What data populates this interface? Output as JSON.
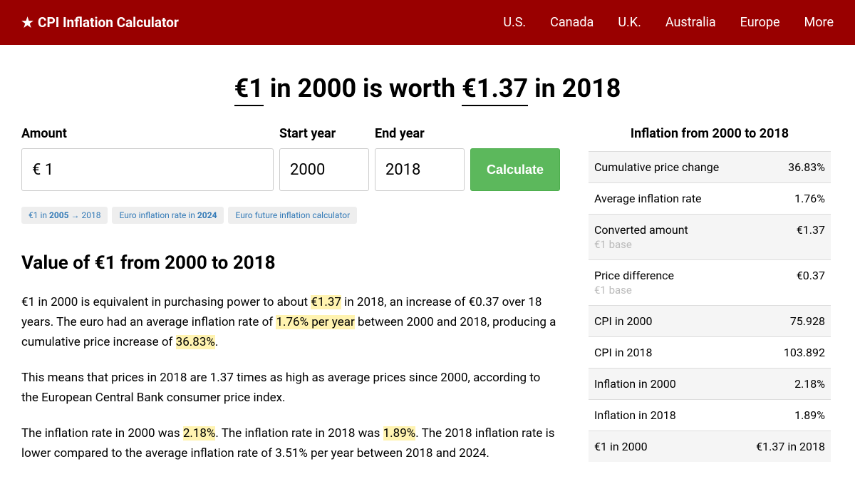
{
  "header": {
    "logo": "CPI Inflation Calculator",
    "nav": [
      "U.S.",
      "Canada",
      "U.K.",
      "Australia",
      "Europe",
      "More"
    ]
  },
  "title": {
    "amount_from": "€1",
    "mid1": " in 2000 is worth ",
    "amount_to": "€1.37",
    "mid2": " in 2018"
  },
  "form": {
    "amount_label": "Amount",
    "start_label": "Start year",
    "end_label": "End year",
    "amount_value": "€ 1",
    "start_value": "2000",
    "end_value": "2018",
    "calc_label": "Calculate"
  },
  "tags": {
    "t1_a": "€1 in ",
    "t1_b": "2005",
    "t1_c": " → 2018",
    "t2_a": "Euro inflation rate in ",
    "t2_b": "2024",
    "t3": "Euro future inflation calculator"
  },
  "section_title": "Value of €1 from 2000 to 2018",
  "p1": {
    "a": "€1 in 2000 is equivalent in purchasing power to about ",
    "h1": "€1.37",
    "b": " in 2018, an increase of €0.37 over 18 years. The euro had an average inflation rate of ",
    "h2": "1.76% per year",
    "c": " between 2000 and 2018, producing a cumulative price increase of ",
    "h3": "36.83%",
    "d": "."
  },
  "p2": "This means that prices in 2018 are 1.37 times as high as average prices since 2000, according to the European Central Bank consumer price index.",
  "p3": {
    "a": "The inflation rate in 2000 was ",
    "h1": "2.18%",
    "b": ". The inflation rate in 2018 was ",
    "h2": "1.89%",
    "c": ". The 2018 inflation rate is lower compared to the average inflation rate of 3.51% per year between 2018 and 2024."
  },
  "sidebar": {
    "title": "Inflation from 2000 to 2018",
    "rows": [
      {
        "label": "Cumulative price change",
        "value": "36.83%"
      },
      {
        "label": "Average inflation rate",
        "value": "1.76%"
      },
      {
        "label": "Converted amount",
        "sub": "€1 base",
        "value": "€1.37"
      },
      {
        "label": "Price difference",
        "sub": "€1 base",
        "value": "€0.37"
      },
      {
        "label": "CPI in 2000",
        "value": "75.928"
      },
      {
        "label": "CPI in 2018",
        "value": "103.892"
      },
      {
        "label": "Inflation in 2000",
        "value": "2.18%"
      },
      {
        "label": "Inflation in 2018",
        "value": "1.89%"
      },
      {
        "label": "€1 in 2000",
        "value": "€1.37 in 2018"
      }
    ]
  },
  "colors": {
    "header_bg": "#990000",
    "button_bg": "#5cb85c",
    "highlight_bg": "#fff3b0",
    "tag_bg": "#eee",
    "link_color": "#337ab7"
  }
}
